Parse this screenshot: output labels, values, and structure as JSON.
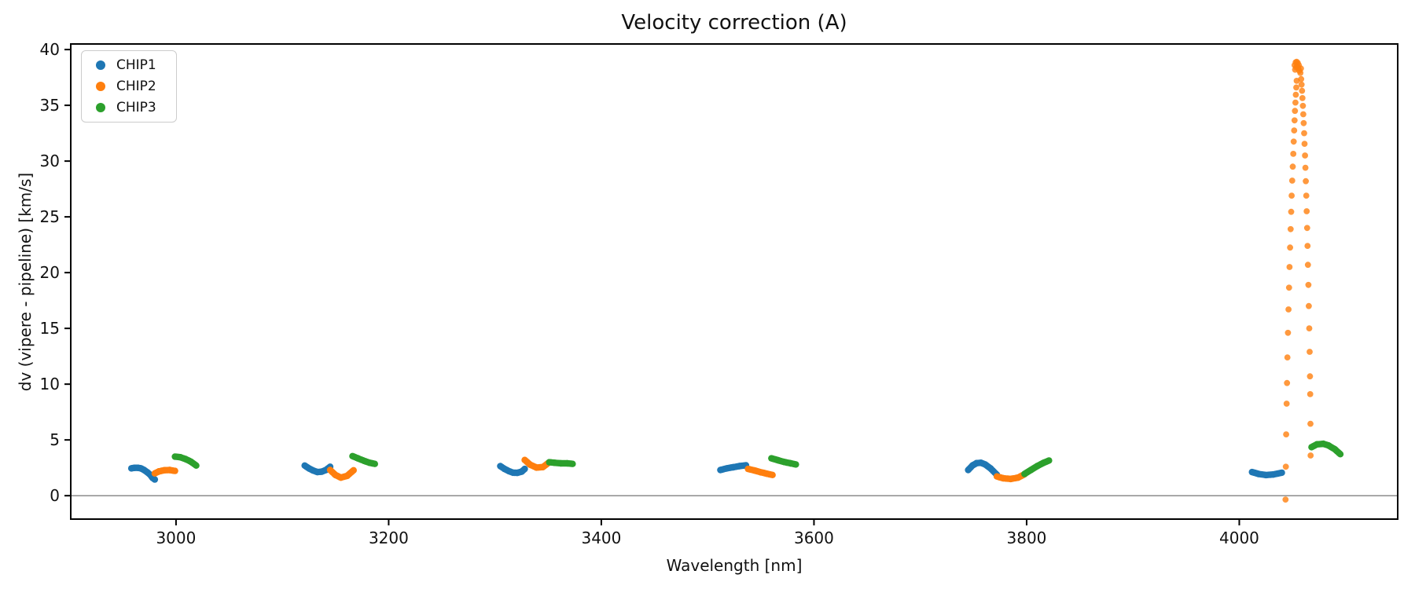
{
  "figure": {
    "background": "#ffffff",
    "text_color": "#111111",
    "spine_color": "#000000"
  },
  "chart_data": {
    "type": "scatter",
    "title": "Velocity correction (A)",
    "xlabel": "Wavelength [nm]",
    "ylabel": "dv (vipere - pipeline) [km/s]",
    "xlim": [
      2901,
      4149
    ],
    "ylim": [
      -2.1,
      40.5
    ],
    "xticks": [
      3000,
      3200,
      3400,
      3600,
      3800,
      4000
    ],
    "yticks": [
      0,
      5,
      10,
      15,
      20,
      25,
      30,
      35,
      40
    ],
    "grid": false,
    "zero_line": {
      "y": 0,
      "color": "#808080"
    },
    "legend": {
      "position": "upper-left",
      "entries": [
        {
          "label": "CHIP1",
          "color": "#1f77b4"
        },
        {
          "label": "CHIP2",
          "color": "#ff7f0e"
        },
        {
          "label": "CHIP3",
          "color": "#2ca02c"
        }
      ]
    },
    "series": [
      {
        "name": "CHIP1",
        "color": "#1f77b4",
        "segments": [
          {
            "marker": "dense",
            "x": [
              2958,
              2961,
              2964,
              2967,
              2970,
              2973,
              2976,
              2978,
              2980
            ],
            "y": [
              2.45,
              2.5,
              2.5,
              2.45,
              2.3,
              2.1,
              1.85,
              1.6,
              1.45
            ]
          },
          {
            "marker": "dense",
            "x": [
              3121,
              3125,
              3129,
              3133,
              3137,
              3141,
              3145
            ],
            "y": [
              2.7,
              2.45,
              2.25,
              2.12,
              2.15,
              2.3,
              2.6
            ]
          },
          {
            "marker": "dense",
            "x": [
              3305,
              3309,
              3313,
              3317,
              3321,
              3325,
              3328
            ],
            "y": [
              2.65,
              2.4,
              2.2,
              2.06,
              2.05,
              2.15,
              2.4
            ]
          },
          {
            "marker": "dense",
            "x": [
              3512,
              3518,
              3524,
              3530,
              3536
            ],
            "y": [
              2.3,
              2.45,
              2.55,
              2.65,
              2.72
            ]
          },
          {
            "marker": "dense",
            "x": [
              3745,
              3749,
              3753,
              3757,
              3761,
              3766,
              3772
            ],
            "y": [
              2.3,
              2.7,
              2.92,
              2.95,
              2.8,
              2.45,
              1.88
            ]
          },
          {
            "marker": "dense",
            "x": [
              4012,
              4018,
              4025,
              4032,
              4040
            ],
            "y": [
              2.12,
              1.95,
              1.85,
              1.9,
              2.06
            ]
          }
        ]
      },
      {
        "name": "CHIP2",
        "color": "#ff7f0e",
        "segments": [
          {
            "marker": "dense",
            "x": [
              2980,
              2984,
              2989,
              2994,
              2999
            ],
            "y": [
              2.0,
              2.18,
              2.28,
              2.3,
              2.22
            ]
          },
          {
            "marker": "dense",
            "x": [
              3145,
              3150,
              3155,
              3161,
              3167
            ],
            "y": [
              2.3,
              1.85,
              1.62,
              1.78,
              2.28
            ]
          },
          {
            "marker": "dense",
            "x": [
              3328,
              3333,
              3339,
              3345,
              3350
            ],
            "y": [
              3.2,
              2.78,
              2.52,
              2.56,
              2.92
            ]
          },
          {
            "marker": "dense",
            "x": [
              3538,
              3544,
              3550,
              3556,
              3561
            ],
            "y": [
              2.4,
              2.26,
              2.1,
              1.96,
              1.86
            ]
          },
          {
            "marker": "dense",
            "x": [
              3772,
              3778,
              3785,
              3792,
              3798
            ],
            "y": [
              1.72,
              1.56,
              1.5,
              1.62,
              1.92
            ]
          },
          {
            "marker": "points",
            "x": [
              4052.0,
              4053.0,
              4054.0,
              4055.0,
              4056.0,
              4052.5,
              4053.5,
              4054.5,
              4055.5,
              4056.5,
              4057.5,
              4058.0
            ],
            "y": [
              38.6,
              38.85,
              38.9,
              38.8,
              38.6,
              38.2,
              38.4,
              38.5,
              38.35,
              38.1,
              37.9,
              38.3
            ]
          },
          {
            "marker": "points",
            "x": [
              4054.0,
              4053.6,
              4053.2,
              4052.8,
              4052.4,
              4052.0,
              4051.6,
              4051.2,
              4050.8,
              4050.3,
              4049.8,
              4049.3,
              4048.8,
              4048.3,
              4047.8,
              4047.3,
              4046.8,
              4046.3,
              4045.8,
              4045.3,
              4044.9,
              4044.5,
              4044.1,
              4043.8,
              4043.5
            ],
            "y": [
              37.2,
              36.6,
              35.95,
              35.25,
              34.5,
              33.65,
              32.75,
              31.75,
              30.65,
              29.5,
              28.25,
              26.9,
              25.45,
              23.9,
              22.25,
              20.5,
              18.65,
              16.7,
              14.6,
              12.4,
              10.1,
              8.25,
              5.5,
              2.6,
              -0.35
            ]
          },
          {
            "marker": "points",
            "x": [
              4058.2,
              4058.6,
              4059.0,
              4059.4,
              4059.8,
              4060.2,
              4060.6,
              4061.0,
              4061.4,
              4061.8,
              4062.2,
              4062.6,
              4063.0,
              4063.4,
              4063.8,
              4064.2,
              4064.6,
              4065.0,
              4065.4,
              4065.8,
              4066.2,
              4066.5,
              4066.7,
              4066.9,
              4067.1
            ],
            "y": [
              37.35,
              36.85,
              36.3,
              35.65,
              34.95,
              34.2,
              33.4,
              32.5,
              31.55,
              30.5,
              29.4,
              28.2,
              26.9,
              25.5,
              24.0,
              22.4,
              20.7,
              18.9,
              17.0,
              15.0,
              12.9,
              10.7,
              9.1,
              6.45,
              3.6
            ]
          }
        ]
      },
      {
        "name": "CHIP3",
        "color": "#2ca02c",
        "segments": [
          {
            "marker": "dense",
            "x": [
              2999,
              3004,
              3009,
              3014,
              3019
            ],
            "y": [
              3.5,
              3.45,
              3.28,
              3.05,
              2.7
            ]
          },
          {
            "marker": "dense",
            "x": [
              3166,
              3171,
              3177,
              3182,
              3187
            ],
            "y": [
              3.55,
              3.35,
              3.12,
              2.95,
              2.85
            ]
          },
          {
            "marker": "dense",
            "x": [
              3351,
              3356,
              3362,
              3368,
              3373
            ],
            "y": [
              3.0,
              2.95,
              2.9,
              2.9,
              2.85
            ]
          },
          {
            "marker": "dense",
            "x": [
              3560,
              3566,
              3572,
              3578,
              3583
            ],
            "y": [
              3.35,
              3.18,
              3.02,
              2.9,
              2.8
            ]
          },
          {
            "marker": "dense",
            "x": [
              3798,
              3804,
              3810,
              3816,
              3821
            ],
            "y": [
              1.95,
              2.3,
              2.65,
              2.95,
              3.15
            ]
          },
          {
            "marker": "dense",
            "x": [
              4068,
              4073,
              4079,
              4084,
              4090,
              4095
            ],
            "y": [
              4.35,
              4.6,
              4.65,
              4.5,
              4.15,
              3.72
            ]
          }
        ]
      }
    ]
  }
}
